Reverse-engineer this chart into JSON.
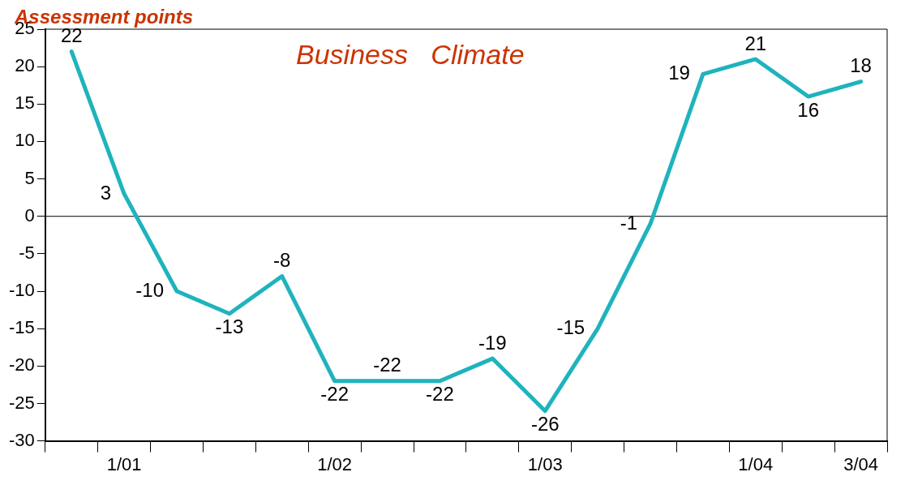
{
  "chart_data": {
    "type": "line",
    "title": "Business   Climate",
    "ylabel": "Assessment points",
    "categories": [
      null,
      "1/01",
      null,
      null,
      null,
      "1/02",
      null,
      null,
      null,
      "1/03",
      null,
      null,
      null,
      "1/04",
      null,
      "3/04"
    ],
    "series": [
      {
        "color": "#1fb3bd",
        "values": [
          22,
          3,
          -10,
          -13,
          -8,
          -22,
          -22,
          -22,
          -19,
          -26,
          -15,
          -1,
          19,
          21,
          16,
          18
        ]
      }
    ],
    "ylim": [
      -30,
      25
    ],
    "yticks": [
      -30,
      -25,
      -20,
      -15,
      -10,
      -5,
      0,
      5,
      10,
      15,
      20,
      25
    ],
    "ref_lines": [
      {
        "axis": "y",
        "value": 0,
        "color": "#000000"
      }
    ],
    "data_labels": true,
    "grid": false,
    "legend": false,
    "marker": "none",
    "line_style": "solid"
  }
}
